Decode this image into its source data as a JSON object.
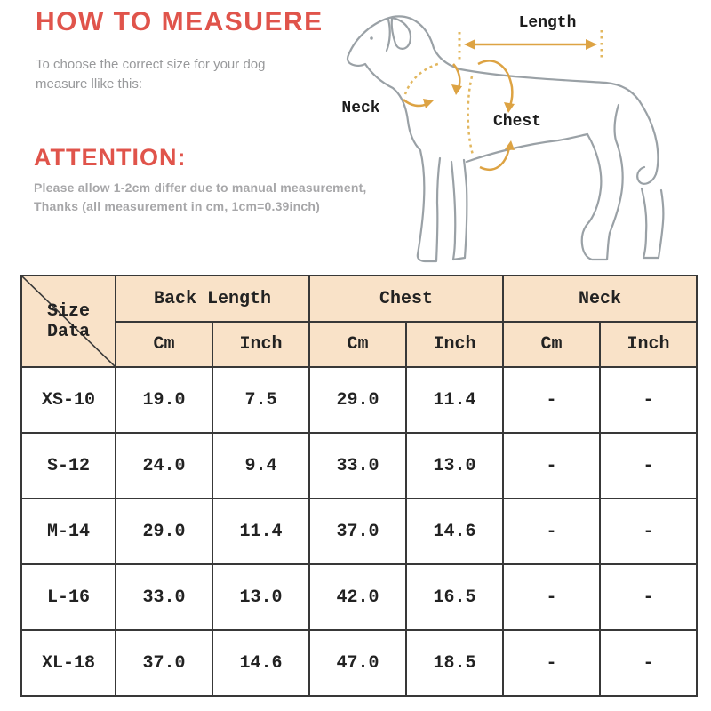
{
  "page": {
    "background": "#ffffff"
  },
  "intro": {
    "title": "HOW TO MEASUERE",
    "subtitle_lines": [
      "To choose the correct size for your dog",
      "measure llike this:"
    ],
    "attention_title": "ATTENTION:",
    "attention_lines": [
      "Please allow 1-2cm differ due to manual measurement,",
      "Thanks (all measurement in cm, 1cm=0.39inch)"
    ]
  },
  "colors": {
    "heading_red": "#e0544b",
    "subtitle_gray": "#98999b",
    "attention_gray": "#a7a7a9",
    "table_border": "#383838",
    "table_header_bg": "#f9e2c8",
    "dog_outline": "#9aa1a6",
    "annotation_orange": "#dda343",
    "annotation_dotted": "#e2b75f"
  },
  "diagram": {
    "length_label": "Length",
    "neck_label": "Neck",
    "chest_label": "Chest"
  },
  "size_table": {
    "corner_label": "Size Data",
    "groups": [
      {
        "label": "Back Length",
        "sub": [
          "Cm",
          "Inch"
        ]
      },
      {
        "label": "Chest",
        "sub": [
          "Cm",
          "Inch"
        ]
      },
      {
        "label": "Neck",
        "sub": [
          "Cm",
          "Inch"
        ]
      }
    ],
    "rows": [
      {
        "size": "XS-10",
        "values": [
          "19.0",
          "7.5",
          "29.0",
          "11.4",
          "-",
          "-"
        ]
      },
      {
        "size": "S-12",
        "values": [
          "24.0",
          "9.4",
          "33.0",
          "13.0",
          "-",
          "-"
        ]
      },
      {
        "size": "M-14",
        "values": [
          "29.0",
          "11.4",
          "37.0",
          "14.6",
          "-",
          "-"
        ]
      },
      {
        "size": "L-16",
        "values": [
          "33.0",
          "13.0",
          "42.0",
          "16.5",
          "-",
          "-"
        ]
      },
      {
        "size": "XL-18",
        "values": [
          "37.0",
          "14.6",
          "47.0",
          "18.5",
          "-",
          "-"
        ]
      }
    ]
  }
}
